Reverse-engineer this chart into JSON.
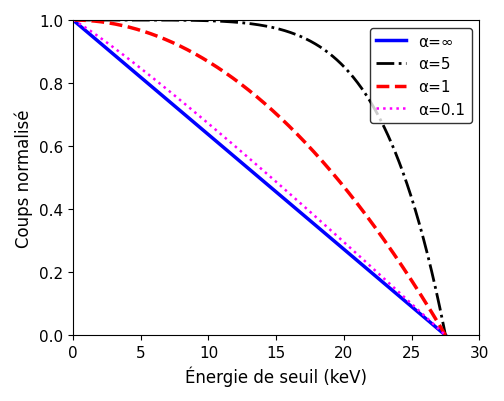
{
  "title": "",
  "xlabel": "Énergie de seuil (keV)",
  "ylabel": "Coups normalisé",
  "xlim": [
    0,
    30
  ],
  "ylim": [
    0,
    1
  ],
  "x_max": 27.5,
  "series": [
    {
      "label": "α=∞",
      "alpha_val": "inf",
      "color": "blue",
      "linestyle": "solid",
      "linewidth": 2.5
    },
    {
      "label": "α=5",
      "alpha_val": 5,
      "color": "black",
      "linestyle": "dashdot",
      "linewidth": 2.0
    },
    {
      "label": "α=1",
      "alpha_val": 1,
      "color": "red",
      "linestyle": "dashed",
      "linewidth": 2.5
    },
    {
      "label": "α=0.1",
      "alpha_val": 0.1,
      "color": "magenta",
      "linestyle": "dotted",
      "linewidth": 1.8
    }
  ],
  "xticks": [
    0,
    5,
    10,
    15,
    20,
    25,
    30
  ],
  "yticks": [
    0,
    0.2,
    0.4,
    0.6,
    0.8,
    1
  ],
  "legend_loc": "upper right",
  "legend_fontsize": 11,
  "axis_fontsize": 12,
  "tick_fontsize": 11,
  "E_max": 27.5
}
